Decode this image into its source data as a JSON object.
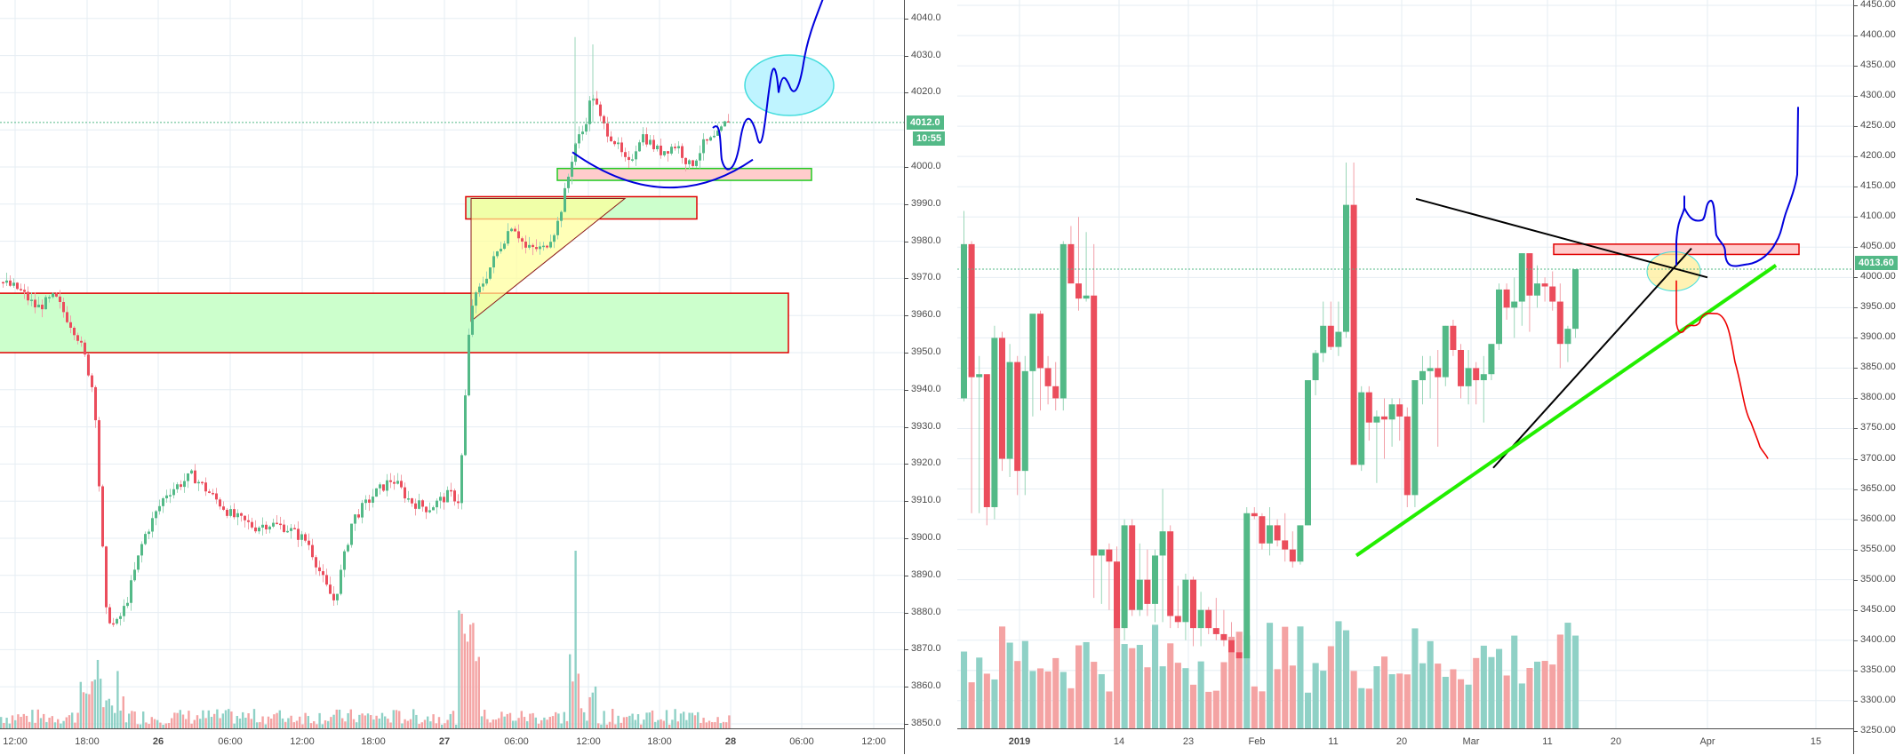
{
  "colors": {
    "up": "#53b987",
    "down": "#eb4d5c",
    "vol_up": "#8fd1c6",
    "vol_down": "#f4a3a3",
    "grid": "#e6edf3",
    "axis_text": "#4a4a4a",
    "price_tag": "#53b987",
    "zone_green": "#ccffcc",
    "zone_pink": "#ffcccc",
    "zone_border_red": "#e00000",
    "zone_border_green": "#22cc22",
    "drawing_blue": "#0000dd",
    "drawing_red": "#ee0000",
    "drawing_black": "#000000",
    "trend_green": "#22ee00",
    "ellipse_cyan": "#44dddd"
  },
  "left_chart": {
    "price_axis": {
      "labels": [
        "4040.0",
        "4030.0",
        "4020.0",
        "4010.0",
        "4000.0",
        "3990.0",
        "3980.0",
        "3970.0",
        "3960.0",
        "3950.0",
        "3940.0",
        "3930.0",
        "3920.0",
        "3910.0",
        "3900.0",
        "3890.0",
        "3880.0",
        "3870.0",
        "3860.0",
        "3850.0"
      ],
      "visible_labels": [
        "4040.0",
        "4030.0",
        "4020.0",
        "4000.0",
        "3990.0",
        "3980.0",
        "3970.0",
        "3960.0",
        "3950.0",
        "3940.0",
        "3930.0",
        "3920.0",
        "3910.0",
        "3900.0",
        "3890.0",
        "3880.0",
        "3870.0",
        "3860.0",
        "3850.0"
      ],
      "last_price": "4012.0",
      "countdown": "10:55"
    },
    "time_axis": [
      {
        "label": "12:00",
        "bold": false
      },
      {
        "label": "18:00",
        "bold": false
      },
      {
        "label": "26",
        "bold": true
      },
      {
        "label": "06:00",
        "bold": false
      },
      {
        "label": "12:00",
        "bold": false
      },
      {
        "label": "18:00",
        "bold": false
      },
      {
        "label": "27",
        "bold": true
      },
      {
        "label": "06:00",
        "bold": false
      },
      {
        "label": "12:00",
        "bold": false
      },
      {
        "label": "18:00",
        "bold": false
      },
      {
        "label": "28",
        "bold": true
      },
      {
        "label": "06:00",
        "bold": false
      },
      {
        "label": "12:00",
        "bold": false
      }
    ]
  },
  "right_chart": {
    "price_axis": {
      "labels": [
        "4450.00",
        "4400.00",
        "4350.00",
        "4300.00",
        "4250.00",
        "4200.00",
        "4150.00",
        "4100.00",
        "4050.00",
        "4000.00",
        "3950.00",
        "3900.00",
        "3850.00",
        "3800.00",
        "3750.00",
        "3700.00",
        "3650.00",
        "3600.00",
        "3550.00",
        "3500.00",
        "3450.00",
        "3400.00",
        "3350.00",
        "3300.00",
        "3250.00"
      ],
      "last_price": "4013.60"
    },
    "time_axis": [
      {
        "label": "2019",
        "bold": true
      },
      {
        "label": "14",
        "bold": false
      },
      {
        "label": "23",
        "bold": false
      },
      {
        "label": "Feb",
        "bold": false
      },
      {
        "label": "11",
        "bold": false
      },
      {
        "label": "20",
        "bold": false
      },
      {
        "label": "Mar",
        "bold": false
      },
      {
        "label": "11",
        "bold": false
      },
      {
        "label": "20",
        "bold": false
      },
      {
        "label": "Apr",
        "bold": false
      },
      {
        "label": "15",
        "bold": false
      }
    ]
  },
  "chart_data": [
    {
      "type": "candlestick",
      "title": "",
      "timeframe_hint": "intraday (approx 15m)",
      "xlabel": "",
      "ylabel": "Price",
      "ylim": [
        3850,
        4045
      ],
      "x_ticks": [
        "12:00",
        "18:00",
        "26",
        "06:00",
        "12:00",
        "18:00",
        "27",
        "06:00",
        "12:00",
        "18:00",
        "28",
        "06:00",
        "12:00"
      ],
      "last_price": 4012.0,
      "countdown": "10:55",
      "grid": true,
      "candles_ohlc_approx": [
        [
          3969,
          3970,
          3966,
          3967
        ],
        [
          3967,
          3968,
          3962,
          3963
        ],
        [
          3963,
          3965,
          3958,
          3964
        ],
        [
          3964,
          3966,
          3956,
          3957
        ],
        [
          3957,
          3960,
          3940,
          3942
        ],
        [
          3942,
          3950,
          3930,
          3948
        ],
        [
          3948,
          3952,
          3946,
          3950
        ],
        [
          3950,
          3951,
          3900,
          3905
        ],
        [
          3905,
          3920,
          3880,
          3880
        ],
        [
          3880,
          3905,
          3878,
          3903
        ],
        [
          3903,
          3912,
          3900,
          3911
        ],
        [
          3911,
          3919,
          3908,
          3915
        ],
        [
          3915,
          3916,
          3906,
          3908
        ],
        [
          3908,
          3912,
          3898,
          3905
        ],
        [
          3905,
          3910,
          3895,
          3898
        ],
        [
          3898,
          3906,
          3896,
          3904
        ],
        [
          3904,
          3908,
          3882,
          3884
        ],
        [
          3884,
          3900,
          3883,
          3899
        ],
        [
          3899,
          3912,
          3896,
          3910
        ],
        [
          3910,
          3914,
          3906,
          3910
        ],
        [
          3910,
          3916,
          3908,
          3914
        ],
        [
          3914,
          3915,
          3908,
          3909
        ],
        [
          3909,
          3912,
          3906,
          3907
        ],
        [
          3907,
          3913,
          3906,
          3912
        ],
        [
          3912,
          3960,
          3910,
          3958
        ],
        [
          3958,
          3970,
          3956,
          3968
        ],
        [
          3968,
          3980,
          3962,
          3976
        ],
        [
          3976,
          3984,
          3970,
          3978
        ],
        [
          3978,
          3982,
          3974,
          3976
        ],
        [
          3976,
          3990,
          3972,
          3988
        ],
        [
          3988,
          3992,
          3978,
          3980
        ],
        [
          3980,
          3985,
          3976,
          3983
        ],
        [
          3983,
          3990,
          3980,
          3986
        ],
        [
          3986,
          4032,
          3984,
          4006
        ],
        [
          4006,
          4034,
          4000,
          4023
        ],
        [
          4023,
          4026,
          4008,
          4010
        ],
        [
          4010,
          4016,
          4002,
          4004
        ],
        [
          4004,
          4012,
          3998,
          4008
        ],
        [
          4008,
          4014,
          4000,
          4002
        ],
        [
          4002,
          4010,
          3996,
          3998
        ],
        [
          3998,
          4010,
          3994,
          4008
        ],
        [
          4008,
          4012,
          4004,
          4006
        ],
        [
          4006,
          4012,
          4002,
          4004
        ],
        [
          4004,
          4009,
          4000,
          4008
        ],
        [
          4008,
          4012,
          4006,
          4012
        ]
      ],
      "annotations": [
        {
          "type": "rectangle",
          "fill": "zone_green",
          "border": "red",
          "price_top": 3966,
          "price_bottom": 3950,
          "label": "support zone"
        },
        {
          "type": "rectangle",
          "fill": "zone_green",
          "border": "red",
          "price_top": 3992,
          "price_bottom": 3986
        },
        {
          "type": "rectangle",
          "fill": "zone_pink",
          "border": "green",
          "price_top": 3999,
          "price_bottom": 3996
        },
        {
          "type": "triangle",
          "fill": "yellow",
          "note": "ascending triangle"
        },
        {
          "type": "arc",
          "color": "blue",
          "note": "rounded bottom"
        },
        {
          "type": "ellipse",
          "color": "cyan",
          "note": "target area ~4020-4030"
        },
        {
          "type": "path",
          "color": "blue",
          "note": "projected path upward"
        }
      ]
    },
    {
      "type": "candlestick",
      "title": "",
      "timeframe_hint": "daily",
      "xlabel": "",
      "ylabel": "Price",
      "ylim": [
        3230,
        4460
      ],
      "x_ticks": [
        "2019",
        "14",
        "23",
        "Feb",
        "11",
        "20",
        "Mar",
        "11",
        "20",
        "Apr",
        "15"
      ],
      "last_price": 4013.6,
      "grid": true,
      "candles_ohlc_approx": [
        [
          3800,
          4110,
          3795,
          4055
        ],
        [
          4055,
          4060,
          3610,
          3835
        ],
        [
          3835,
          3870,
          3610,
          3840
        ],
        [
          3840,
          3820,
          3590,
          3620
        ],
        [
          3620,
          3920,
          3600,
          3900
        ],
        [
          3900,
          3910,
          3680,
          3700
        ],
        [
          3700,
          3890,
          3670,
          3860
        ],
        [
          3860,
          3870,
          3640,
          3680
        ],
        [
          3680,
          3870,
          3640,
          3845
        ],
        [
          3845,
          3920,
          3770,
          3940
        ],
        [
          3940,
          3945,
          3780,
          3850
        ],
        [
          3850,
          3870,
          3790,
          3820
        ],
        [
          3820,
          3860,
          3780,
          3800
        ],
        [
          3800,
          4060,
          3780,
          4055
        ],
        [
          4055,
          4085,
          3990,
          3990
        ],
        [
          3990,
          4100,
          3945,
          3965
        ],
        [
          3965,
          4075,
          3960,
          3970
        ],
        [
          3970,
          4055,
          3470,
          3540
        ],
        [
          3540,
          3550,
          3460,
          3550
        ],
        [
          3550,
          3560,
          3450,
          3530
        ],
        [
          3530,
          3555,
          3400,
          3420
        ],
        [
          3420,
          3600,
          3400,
          3590
        ],
        [
          3590,
          3600,
          3440,
          3450
        ],
        [
          3450,
          3560,
          3440,
          3500
        ],
        [
          3500,
          3550,
          3440,
          3460
        ],
        [
          3460,
          3550,
          3430,
          3540
        ],
        [
          3540,
          3650,
          3430,
          3580
        ],
        [
          3580,
          3590,
          3420,
          3440
        ],
        [
          3440,
          3490,
          3420,
          3430
        ],
        [
          3430,
          3510,
          3400,
          3500
        ],
        [
          3500,
          3505,
          3390,
          3420
        ],
        [
          3420,
          3480,
          3390,
          3450
        ],
        [
          3450,
          3455,
          3410,
          3420
        ],
        [
          3420,
          3470,
          3400,
          3410
        ],
        [
          3410,
          3450,
          3390,
          3400
        ],
        [
          3400,
          3430,
          3370,
          3380
        ],
        [
          3380,
          3390,
          3360,
          3370
        ],
        [
          3370,
          3620,
          3360,
          3610
        ],
        [
          3610,
          3620,
          3600,
          3605
        ],
        [
          3605,
          3610,
          3550,
          3560
        ],
        [
          3560,
          3620,
          3540,
          3590
        ],
        [
          3590,
          3600,
          3555,
          3565
        ],
        [
          3565,
          3610,
          3530,
          3550
        ],
        [
          3550,
          3580,
          3520,
          3530
        ],
        [
          3530,
          3590,
          3525,
          3590
        ],
        [
          3590,
          3660,
          3590,
          3830
        ],
        [
          3830,
          3880,
          3805,
          3875
        ],
        [
          3875,
          3960,
          3860,
          3920
        ],
        [
          3920,
          3960,
          3880,
          3885
        ],
        [
          3885,
          3960,
          3870,
          3910
        ],
        [
          3910,
          4190,
          3900,
          4120
        ],
        [
          4120,
          4190,
          3690,
          3690
        ],
        [
          3690,
          3820,
          3680,
          3810
        ],
        [
          3810,
          3820,
          3730,
          3760
        ],
        [
          3760,
          3780,
          3660,
          3770
        ],
        [
          3770,
          3800,
          3700,
          3765
        ],
        [
          3765,
          3800,
          3720,
          3790
        ],
        [
          3790,
          3800,
          3730,
          3770
        ],
        [
          3770,
          3785,
          3620,
          3640
        ],
        [
          3640,
          3800,
          3620,
          3830
        ],
        [
          3830,
          3870,
          3790,
          3845
        ],
        [
          3845,
          3870,
          3800,
          3850
        ],
        [
          3850,
          3880,
          3720,
          3835
        ],
        [
          3835,
          3920,
          3820,
          3920
        ],
        [
          3920,
          3930,
          3870,
          3880
        ],
        [
          3880,
          3890,
          3800,
          3820
        ],
        [
          3820,
          3880,
          3790,
          3850
        ],
        [
          3850,
          3860,
          3790,
          3830
        ],
        [
          3830,
          3870,
          3760,
          3840
        ],
        [
          3840,
          3890,
          3830,
          3890
        ],
        [
          3890,
          3990,
          3880,
          3980
        ],
        [
          3980,
          3990,
          3930,
          3950
        ],
        [
          3950,
          4000,
          3900,
          3960
        ],
        [
          3960,
          4040,
          3920,
          4040
        ],
        [
          4040,
          4040,
          3910,
          3970
        ],
        [
          3970,
          4020,
          3950,
          3990
        ],
        [
          3990,
          4000,
          3960,
          3985
        ],
        [
          3985,
          4010,
          3945,
          3960
        ],
        [
          3960,
          3990,
          3850,
          3890
        ],
        [
          3890,
          3920,
          3860,
          3915
        ],
        [
          3915,
          4000,
          3900,
          4013.6
        ]
      ],
      "volume_hint": "relative bars at bottom, teal=up, salmon=down",
      "annotations": [
        {
          "type": "rectangle",
          "fill": "zone_pink",
          "border": "red",
          "price_top": 4055,
          "price_bottom": 4035,
          "note": "resistance zone"
        },
        {
          "type": "trendline",
          "color": "black",
          "note": "descending from Feb 20 high"
        },
        {
          "type": "trendline",
          "color": "black",
          "note": "ascending from Mar low"
        },
        {
          "type": "trendline",
          "color": "green",
          "note": "long ascending support from Feb"
        },
        {
          "type": "ellipse",
          "color": "yellow",
          "note": "breakout point"
        },
        {
          "type": "path",
          "color": "blue",
          "note": "bullish scenario to ~4280"
        },
        {
          "type": "path",
          "color": "red",
          "note": "bearish scenario to ~3700"
        }
      ]
    }
  ]
}
